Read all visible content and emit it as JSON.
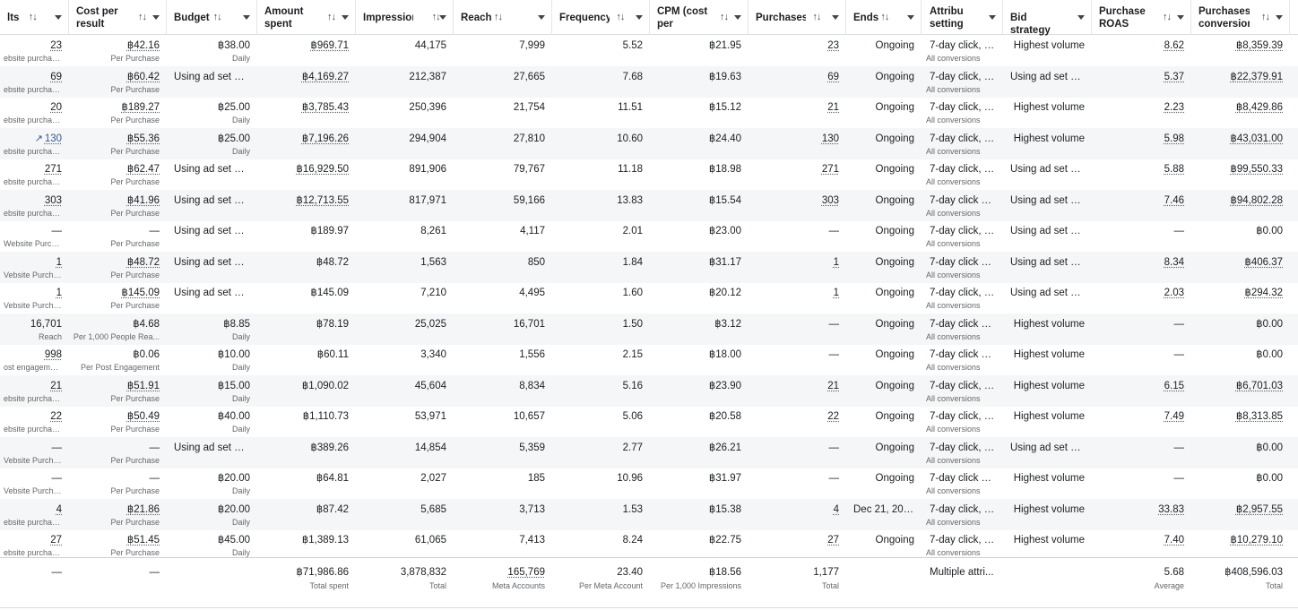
{
  "columns": [
    {
      "key": "results",
      "label": "lts",
      "sort": true,
      "align": "r"
    },
    {
      "key": "cost",
      "label": "Cost per\nresult",
      "sort": true,
      "align": "r"
    },
    {
      "key": "budget",
      "label": "Budget",
      "sort": true,
      "align": "r"
    },
    {
      "key": "spent",
      "label": "Amount\nspent",
      "sort": true,
      "align": "r"
    },
    {
      "key": "impressions",
      "label": "Impressions",
      "sort": true,
      "align": "r"
    },
    {
      "key": "reach",
      "label": "Reach",
      "sort": true,
      "align": "r"
    },
    {
      "key": "frequency",
      "label": "Frequency",
      "sort": true,
      "align": "r"
    },
    {
      "key": "cpm",
      "label": "CPM (cost\nper 1,000...",
      "sort": true,
      "align": "r"
    },
    {
      "key": "purchases",
      "label": "Purchases",
      "sort": true,
      "align": "r"
    },
    {
      "key": "ends",
      "label": "Ends",
      "sort": true,
      "align": "r"
    },
    {
      "key": "attribution",
      "label": "Attribution\nsetting",
      "sort": false,
      "align": "l"
    },
    {
      "key": "bid",
      "label": "Bid strategy",
      "sort": false,
      "align": "r"
    },
    {
      "key": "roas",
      "label": "Purchase\nROAS (retu...",
      "sort": true,
      "align": "r"
    },
    {
      "key": "conv",
      "label": "Purchases\nconversion...",
      "sort": true,
      "align": "r"
    }
  ],
  "rows": [
    {
      "results": {
        "v": "23",
        "s": "ebsite purchases",
        "u": true
      },
      "cost": {
        "v": "฿42.16",
        "s": "Per Purchase",
        "u": true
      },
      "budget": {
        "v": "฿38.00",
        "s": "Daily"
      },
      "spent": {
        "v": "฿969.71",
        "u": true
      },
      "impressions": {
        "v": "44,175"
      },
      "reach": {
        "v": "7,999"
      },
      "frequency": {
        "v": "5.52"
      },
      "cpm": {
        "v": "฿21.95"
      },
      "purchases": {
        "v": "23",
        "u": true
      },
      "ends": {
        "v": "Ongoing"
      },
      "attribution": {
        "v": "7-day click, 1-...",
        "s": "All conversions"
      },
      "bid": {
        "v": "Highest volume"
      },
      "roas": {
        "v": "8.62",
        "u": true
      },
      "conv": {
        "v": "฿8,359.39",
        "u": true
      }
    },
    {
      "results": {
        "v": "69",
        "s": "ebsite purchases",
        "u": true
      },
      "cost": {
        "v": "฿60.42",
        "s": "Per Purchase",
        "u": true
      },
      "budget": {
        "v": "Using ad set bu...",
        "s": ""
      },
      "spent": {
        "v": "฿4,169.27",
        "u": true
      },
      "impressions": {
        "v": "212,387"
      },
      "reach": {
        "v": "27,665"
      },
      "frequency": {
        "v": "7.68"
      },
      "cpm": {
        "v": "฿19.63"
      },
      "purchases": {
        "v": "69",
        "u": true
      },
      "ends": {
        "v": "Ongoing"
      },
      "attribution": {
        "v": "7-day click, 1-...",
        "s": "All conversions"
      },
      "bid": {
        "v": "Using ad set bid..."
      },
      "roas": {
        "v": "5.37",
        "u": true
      },
      "conv": {
        "v": "฿22,379.91",
        "u": true
      }
    },
    {
      "results": {
        "v": "20",
        "s": "ebsite purchases",
        "u": true
      },
      "cost": {
        "v": "฿189.27",
        "s": "Per Purchase",
        "u": true
      },
      "budget": {
        "v": "฿25.00",
        "s": "Daily"
      },
      "spent": {
        "v": "฿3,785.43",
        "u": true
      },
      "impressions": {
        "v": "250,396"
      },
      "reach": {
        "v": "21,754"
      },
      "frequency": {
        "v": "11.51"
      },
      "cpm": {
        "v": "฿15.12"
      },
      "purchases": {
        "v": "21",
        "u": true
      },
      "ends": {
        "v": "Ongoing"
      },
      "attribution": {
        "v": "7-day click, 1-...",
        "s": "All conversions"
      },
      "bid": {
        "v": "Highest volume"
      },
      "roas": {
        "v": "2.23",
        "u": true
      },
      "conv": {
        "v": "฿8,429.86",
        "u": true
      }
    },
    {
      "results": {
        "v": "130",
        "s": "ebsite purchases",
        "u": true,
        "trend": true
      },
      "cost": {
        "v": "฿55.36",
        "s": "Per Purchase",
        "u": true
      },
      "budget": {
        "v": "฿25.00",
        "s": "Daily"
      },
      "spent": {
        "v": "฿7,196.26",
        "u": true
      },
      "impressions": {
        "v": "294,904"
      },
      "reach": {
        "v": "27,810"
      },
      "frequency": {
        "v": "10.60"
      },
      "cpm": {
        "v": "฿24.40"
      },
      "purchases": {
        "v": "130",
        "u": true
      },
      "ends": {
        "v": "Ongoing"
      },
      "attribution": {
        "v": "7-day click, 1-...",
        "s": "All conversions"
      },
      "bid": {
        "v": "Highest volume"
      },
      "roas": {
        "v": "5.98",
        "u": true
      },
      "conv": {
        "v": "฿43,031.00",
        "u": true
      }
    },
    {
      "results": {
        "v": "271",
        "s": "ebsite purchases",
        "u": true
      },
      "cost": {
        "v": "฿62.47",
        "s": "Per Purchase",
        "u": true
      },
      "budget": {
        "v": "Using ad set bu...",
        "s": ""
      },
      "spent": {
        "v": "฿16,929.50",
        "u": true
      },
      "impressions": {
        "v": "891,906"
      },
      "reach": {
        "v": "79,767"
      },
      "frequency": {
        "v": "11.18"
      },
      "cpm": {
        "v": "฿18.98"
      },
      "purchases": {
        "v": "271",
        "u": true
      },
      "ends": {
        "v": "Ongoing"
      },
      "attribution": {
        "v": "7-day click, 1-...",
        "s": "All conversions"
      },
      "bid": {
        "v": "Using ad set bid..."
      },
      "roas": {
        "v": "5.88",
        "u": true
      },
      "conv": {
        "v": "฿99,550.33",
        "u": true
      }
    },
    {
      "results": {
        "v": "303",
        "s": "ebsite purchases",
        "u": true
      },
      "cost": {
        "v": "฿41.96",
        "s": "Per Purchase",
        "u": true
      },
      "budget": {
        "v": "Using ad set bu...",
        "s": ""
      },
      "spent": {
        "v": "฿12,713.55",
        "u": true
      },
      "impressions": {
        "v": "817,971"
      },
      "reach": {
        "v": "59,166"
      },
      "frequency": {
        "v": "13.83"
      },
      "cpm": {
        "v": "฿15.54"
      },
      "purchases": {
        "v": "303",
        "u": true
      },
      "ends": {
        "v": "Ongoing"
      },
      "attribution": {
        "v": "7-day click or ...",
        "s": "All conversions"
      },
      "bid": {
        "v": "Using ad set bid..."
      },
      "roas": {
        "v": "7.46",
        "u": true
      },
      "conv": {
        "v": "฿94,802.28",
        "u": true
      }
    },
    {
      "results": {
        "v": "—",
        "s": "Website Purchase"
      },
      "cost": {
        "v": "—",
        "s": "Per Purchase"
      },
      "budget": {
        "v": "Using ad set bu...",
        "s": ""
      },
      "spent": {
        "v": "฿189.97"
      },
      "impressions": {
        "v": "8,261"
      },
      "reach": {
        "v": "4,117"
      },
      "frequency": {
        "v": "2.01"
      },
      "cpm": {
        "v": "฿23.00"
      },
      "purchases": {
        "v": "—"
      },
      "ends": {
        "v": "Ongoing"
      },
      "attribution": {
        "v": "7-day click, 1-...",
        "s": "All conversions"
      },
      "bid": {
        "v": "Using ad set bid..."
      },
      "roas": {
        "v": "—"
      },
      "conv": {
        "v": "฿0.00"
      }
    },
    {
      "results": {
        "v": "1",
        "s": "Vebsite Purchase",
        "u": true
      },
      "cost": {
        "v": "฿48.72",
        "s": "Per Purchase",
        "u": true
      },
      "budget": {
        "v": "Using ad set bu...",
        "s": ""
      },
      "spent": {
        "v": "฿48.72"
      },
      "impressions": {
        "v": "1,563"
      },
      "reach": {
        "v": "850"
      },
      "frequency": {
        "v": "1.84"
      },
      "cpm": {
        "v": "฿31.17"
      },
      "purchases": {
        "v": "1",
        "u": true
      },
      "ends": {
        "v": "Ongoing"
      },
      "attribution": {
        "v": "7-day click or ...",
        "s": "All conversions"
      },
      "bid": {
        "v": "Using ad set bid..."
      },
      "roas": {
        "v": "8.34",
        "u": true
      },
      "conv": {
        "v": "฿406.37",
        "u": true
      }
    },
    {
      "results": {
        "v": "1",
        "s": "Vebsite Purchase",
        "u": true
      },
      "cost": {
        "v": "฿145.09",
        "s": "Per Purchase",
        "u": true
      },
      "budget": {
        "v": "Using ad set bu...",
        "s": ""
      },
      "spent": {
        "v": "฿145.09"
      },
      "impressions": {
        "v": "7,210"
      },
      "reach": {
        "v": "4,495"
      },
      "frequency": {
        "v": "1.60"
      },
      "cpm": {
        "v": "฿20.12"
      },
      "purchases": {
        "v": "1",
        "u": true
      },
      "ends": {
        "v": "Ongoing"
      },
      "attribution": {
        "v": "7-day click, 1-...",
        "s": "All conversions"
      },
      "bid": {
        "v": "Using ad set bid..."
      },
      "roas": {
        "v": "2.03",
        "u": true
      },
      "conv": {
        "v": "฿294.32",
        "u": true
      }
    },
    {
      "results": {
        "v": "16,701",
        "s": "Reach"
      },
      "cost": {
        "v": "฿4.68",
        "s": "Per 1,000 People Rea..."
      },
      "budget": {
        "v": "฿8.85",
        "s": "Daily"
      },
      "spent": {
        "v": "฿78.19"
      },
      "impressions": {
        "v": "25,025"
      },
      "reach": {
        "v": "16,701"
      },
      "frequency": {
        "v": "1.50"
      },
      "cpm": {
        "v": "฿3.12"
      },
      "purchases": {
        "v": "—"
      },
      "ends": {
        "v": "Ongoing"
      },
      "attribution": {
        "v": "7-day click or ...",
        "s": "All conversions"
      },
      "bid": {
        "v": "Highest volume"
      },
      "roas": {
        "v": "—"
      },
      "conv": {
        "v": "฿0.00"
      }
    },
    {
      "results": {
        "v": "998",
        "s": "ost engagements",
        "u": true
      },
      "cost": {
        "v": "฿0.06",
        "s": "Per Post Engagement"
      },
      "budget": {
        "v": "฿10.00",
        "s": "Daily"
      },
      "spent": {
        "v": "฿60.11"
      },
      "impressions": {
        "v": "3,340"
      },
      "reach": {
        "v": "1,556"
      },
      "frequency": {
        "v": "2.15"
      },
      "cpm": {
        "v": "฿18.00"
      },
      "purchases": {
        "v": "—"
      },
      "ends": {
        "v": "Ongoing"
      },
      "attribution": {
        "v": "7-day click or ...",
        "s": "All conversions"
      },
      "bid": {
        "v": "Highest volume"
      },
      "roas": {
        "v": "—"
      },
      "conv": {
        "v": "฿0.00"
      }
    },
    {
      "results": {
        "v": "21",
        "s": "ebsite purchases",
        "u": true
      },
      "cost": {
        "v": "฿51.91",
        "s": "Per Purchase",
        "u": true
      },
      "budget": {
        "v": "฿15.00",
        "s": "Daily"
      },
      "spent": {
        "v": "฿1,090.02"
      },
      "impressions": {
        "v": "45,604"
      },
      "reach": {
        "v": "8,834"
      },
      "frequency": {
        "v": "5.16"
      },
      "cpm": {
        "v": "฿23.90"
      },
      "purchases": {
        "v": "21",
        "u": true
      },
      "ends": {
        "v": "Ongoing"
      },
      "attribution": {
        "v": "7-day click, 1-...",
        "s": "All conversions"
      },
      "bid": {
        "v": "Highest volume"
      },
      "roas": {
        "v": "6.15",
        "u": true
      },
      "conv": {
        "v": "฿6,701.03",
        "u": true
      }
    },
    {
      "results": {
        "v": "22",
        "s": "ebsite purchases",
        "u": true
      },
      "cost": {
        "v": "฿50.49",
        "s": "Per Purchase",
        "u": true
      },
      "budget": {
        "v": "฿40.00",
        "s": "Daily"
      },
      "spent": {
        "v": "฿1,110.73"
      },
      "impressions": {
        "v": "53,971"
      },
      "reach": {
        "v": "10,657"
      },
      "frequency": {
        "v": "5.06"
      },
      "cpm": {
        "v": "฿20.58"
      },
      "purchases": {
        "v": "22",
        "u": true
      },
      "ends": {
        "v": "Ongoing"
      },
      "attribution": {
        "v": "7-day click, 1-...",
        "s": "All conversions"
      },
      "bid": {
        "v": "Highest volume"
      },
      "roas": {
        "v": "7.49",
        "u": true
      },
      "conv": {
        "v": "฿8,313.85",
        "u": true
      }
    },
    {
      "results": {
        "v": "—",
        "s": "Vebsite Purchase"
      },
      "cost": {
        "v": "—",
        "s": "Per Purchase"
      },
      "budget": {
        "v": "Using ad set bu...",
        "s": ""
      },
      "spent": {
        "v": "฿389.26"
      },
      "impressions": {
        "v": "14,854"
      },
      "reach": {
        "v": "5,359"
      },
      "frequency": {
        "v": "2.77"
      },
      "cpm": {
        "v": "฿26.21"
      },
      "purchases": {
        "v": "—"
      },
      "ends": {
        "v": "Ongoing"
      },
      "attribution": {
        "v": "7-day click, 1-...",
        "s": "All conversions"
      },
      "bid": {
        "v": "Using ad set bid..."
      },
      "roas": {
        "v": "—"
      },
      "conv": {
        "v": "฿0.00"
      }
    },
    {
      "results": {
        "v": "—",
        "s": "Vebsite Purchase"
      },
      "cost": {
        "v": "—",
        "s": "Per Purchase"
      },
      "budget": {
        "v": "฿20.00",
        "s": "Daily"
      },
      "spent": {
        "v": "฿64.81"
      },
      "impressions": {
        "v": "2,027"
      },
      "reach": {
        "v": "185"
      },
      "frequency": {
        "v": "10.96"
      },
      "cpm": {
        "v": "฿31.97"
      },
      "purchases": {
        "v": "—"
      },
      "ends": {
        "v": "Ongoing"
      },
      "attribution": {
        "v": "7-day click or ...",
        "s": "All conversions"
      },
      "bid": {
        "v": "Highest volume"
      },
      "roas": {
        "v": "—"
      },
      "conv": {
        "v": "฿0.00"
      }
    },
    {
      "results": {
        "v": "4",
        "s": "ebsite purchases",
        "u": true
      },
      "cost": {
        "v": "฿21.86",
        "s": "Per Purchase",
        "u": true
      },
      "budget": {
        "v": "฿20.00",
        "s": "Daily"
      },
      "spent": {
        "v": "฿87.42"
      },
      "impressions": {
        "v": "5,685"
      },
      "reach": {
        "v": "3,713"
      },
      "frequency": {
        "v": "1.53"
      },
      "cpm": {
        "v": "฿15.38"
      },
      "purchases": {
        "v": "4",
        "u": true
      },
      "ends": {
        "v": "Dec 21, 2025"
      },
      "attribution": {
        "v": "7-day click, 1-...",
        "s": "All conversions"
      },
      "bid": {
        "v": "Highest volume"
      },
      "roas": {
        "v": "33.83",
        "u": true
      },
      "conv": {
        "v": "฿2,957.55",
        "u": true
      }
    },
    {
      "results": {
        "v": "27",
        "s": "ebsite purchases",
        "u": true
      },
      "cost": {
        "v": "฿51.45",
        "s": "Per Purchase",
        "u": true
      },
      "budget": {
        "v": "฿45.00",
        "s": "Daily"
      },
      "spent": {
        "v": "฿1,389.13"
      },
      "impressions": {
        "v": "61,065"
      },
      "reach": {
        "v": "7,413"
      },
      "frequency": {
        "v": "8.24"
      },
      "cpm": {
        "v": "฿22.75"
      },
      "purchases": {
        "v": "27",
        "u": true
      },
      "ends": {
        "v": "Ongoing"
      },
      "attribution": {
        "v": "7-day click, 1-...",
        "s": "All conversions"
      },
      "bid": {
        "v": "Highest volume"
      },
      "roas": {
        "v": "7.40",
        "u": true
      },
      "conv": {
        "v": "฿10,279.10",
        "u": true
      }
    }
  ],
  "totals": {
    "results": {
      "v": "—"
    },
    "cost": {
      "v": "—"
    },
    "budget": {
      "v": ""
    },
    "spent": {
      "v": "฿71,986.86",
      "s": "Total spent"
    },
    "impressions": {
      "v": "3,878,832",
      "s": "Total"
    },
    "reach": {
      "v": "165,769",
      "s": "Meta Accounts",
      "u": true
    },
    "frequency": {
      "v": "23.40",
      "s": "Per Meta Account"
    },
    "cpm": {
      "v": "฿18.56",
      "s": "Per 1,000 Impressions"
    },
    "purchases": {
      "v": "1,177",
      "s": "Total"
    },
    "ends": {
      "v": ""
    },
    "attribution": {
      "v": "Multiple attri..."
    },
    "bid": {
      "v": ""
    },
    "roas": {
      "v": "5.68",
      "s": "Average"
    },
    "conv": {
      "v": "฿408,596.03",
      "s": "Total"
    }
  }
}
